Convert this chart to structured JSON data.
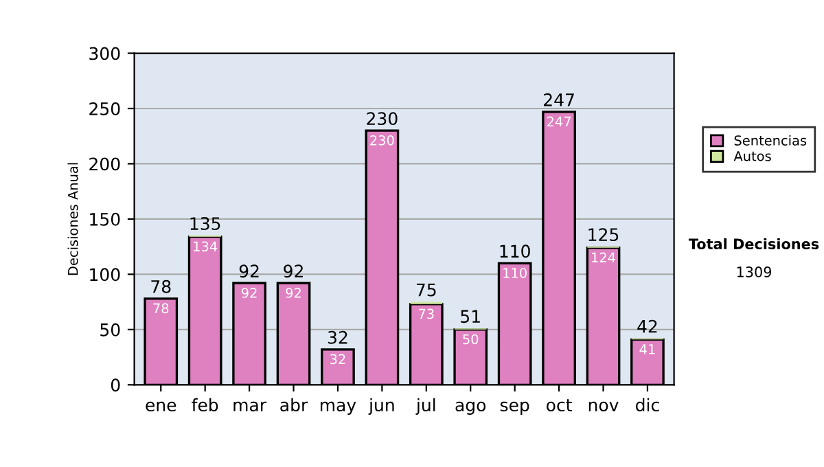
{
  "chart_data": {
    "type": "bar",
    "stacked": true,
    "ylabel": "Decisiones Anual",
    "categories": [
      "ene",
      "feb",
      "mar",
      "abr",
      "may",
      "jun",
      "jul",
      "ago",
      "sep",
      "oct",
      "nov",
      "dic"
    ],
    "series": [
      {
        "name": "Sentencias",
        "color": "#df80c0",
        "values": [
          78,
          134,
          92,
          92,
          32,
          230,
          73,
          50,
          110,
          247,
          124,
          41
        ],
        "value_labels": [
          "78",
          "134",
          "92",
          "92",
          "32",
          "230",
          "73",
          "50",
          "110",
          "247",
          "124",
          "41"
        ]
      },
      {
        "name": "Autos",
        "color": "#d0e8a0",
        "values": [
          0,
          1,
          0,
          0,
          0,
          0,
          2,
          1,
          0,
          0,
          1,
          1
        ]
      }
    ],
    "totals": [
      "78",
      "135",
      "92",
      "92",
      "32",
      "230",
      "75",
      "51",
      "110",
      "247",
      "125",
      "42"
    ],
    "ylim": [
      0,
      300
    ],
    "yticks": [
      0,
      50,
      100,
      150,
      200,
      250,
      300
    ],
    "grid": "y",
    "legend": "right",
    "annotations": [
      "Total Decisiones",
      "1309"
    ]
  }
}
